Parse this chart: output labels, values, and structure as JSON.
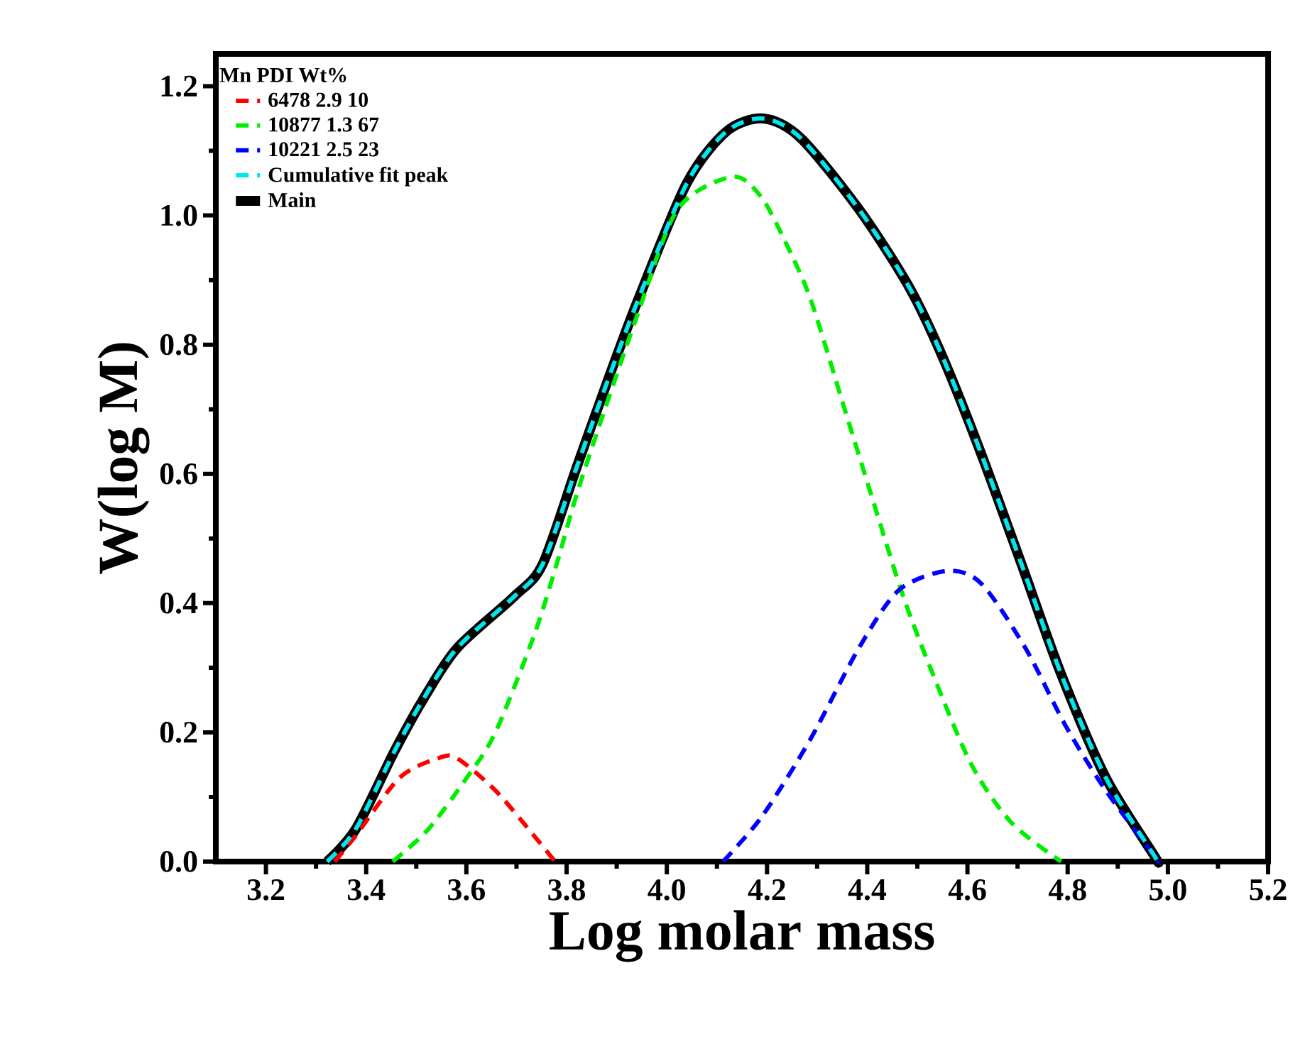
{
  "chart_data": {
    "type": "line",
    "xlabel": "Log molar mass",
    "ylabel": "W(log M)",
    "legend_title": "Mn PDI Wt%",
    "legend": "top left",
    "xlim": [
      3.1,
      5.2
    ],
    "xticks": [
      3.2,
      3.4,
      3.6,
      3.8,
      {
        "value": 4,
        "label": "4.0"
      },
      4.2,
      4.4,
      4.6,
      4.8,
      {
        "value": 5,
        "label": "5.0"
      },
      5.2
    ],
    "ylim": [
      0,
      1.25
    ],
    "yticks": [
      {
        "value": 0,
        "label": "0.0"
      },
      0.2,
      0.4,
      0.6,
      0.8,
      {
        "value": 1,
        "label": "1.0"
      },
      1.2
    ],
    "series": [
      {
        "name": "6478 2.9 10",
        "color": "#ff0000",
        "line_style": "dashed",
        "x": [
          3.337,
          3.379,
          3.467,
          3.544,
          3.581,
          3.658,
          3.735,
          3.777
        ],
        "values": [
          0,
          0.04,
          0.13,
          0.16,
          0.16,
          0.11,
          0.04,
          0
        ]
      },
      {
        "name": "10877 1.3 67",
        "color": "#00ee00",
        "line_style": "dashed",
        "x": [
          3.453,
          3.524,
          3.601,
          3.658,
          3.735,
          3.78,
          3.829,
          3.943,
          4.022,
          4.13,
          4.187,
          4.236,
          4.287,
          4.355,
          4.415,
          4.472,
          4.531,
          4.608,
          4.688,
          4.787
        ],
        "values": [
          0,
          0.05,
          0.13,
          0.2,
          0.35,
          0.46,
          0.59,
          0.85,
          1.01,
          1.06,
          1.03,
          0.96,
          0.87,
          0.7,
          0.55,
          0.41,
          0.29,
          0.15,
          0.06,
          0
        ]
      },
      {
        "name": "10221 2.5 23",
        "color": "#0000ff",
        "line_style": "dashed",
        "x": [
          4.112,
          4.19,
          4.287,
          4.383,
          4.463,
          4.56,
          4.628,
          4.716,
          4.796,
          4.876,
          4.972,
          4.98
        ],
        "values": [
          0,
          0.07,
          0.19,
          0.33,
          0.42,
          0.45,
          0.43,
          0.33,
          0.21,
          0.11,
          0.01,
          0
        ]
      },
      {
        "name": "Cumulative fit peak",
        "color": "#00e5ee",
        "line_style": "dashed",
        "x": [
          3.322,
          3.379,
          3.456,
          3.513,
          3.581,
          3.695,
          3.752,
          3.82,
          3.88,
          3.943,
          4.04,
          4.119,
          4.193,
          4.267,
          4.383,
          4.483,
          4.551,
          4.628,
          4.708,
          4.787,
          4.876,
          4.972,
          4.98
        ],
        "values": [
          0,
          0.05,
          0.17,
          0.25,
          0.33,
          0.41,
          0.46,
          0.61,
          0.74,
          0.87,
          1.05,
          1.13,
          1.15,
          1.12,
          1.01,
          0.89,
          0.78,
          0.63,
          0.46,
          0.29,
          0.13,
          0.01,
          0
        ]
      },
      {
        "name": "Main",
        "color": "#000000",
        "line_style": "solid",
        "x": [
          3.322,
          3.379,
          3.456,
          3.513,
          3.581,
          3.695,
          3.752,
          3.82,
          3.88,
          3.943,
          4.04,
          4.119,
          4.193,
          4.267,
          4.383,
          4.483,
          4.551,
          4.628,
          4.708,
          4.787,
          4.876,
          4.972,
          4.98
        ],
        "values": [
          0,
          0.05,
          0.17,
          0.25,
          0.33,
          0.41,
          0.46,
          0.61,
          0.74,
          0.87,
          1.05,
          1.13,
          1.15,
          1.12,
          1.01,
          0.89,
          0.78,
          0.63,
          0.46,
          0.29,
          0.13,
          0.01,
          0
        ]
      }
    ]
  }
}
